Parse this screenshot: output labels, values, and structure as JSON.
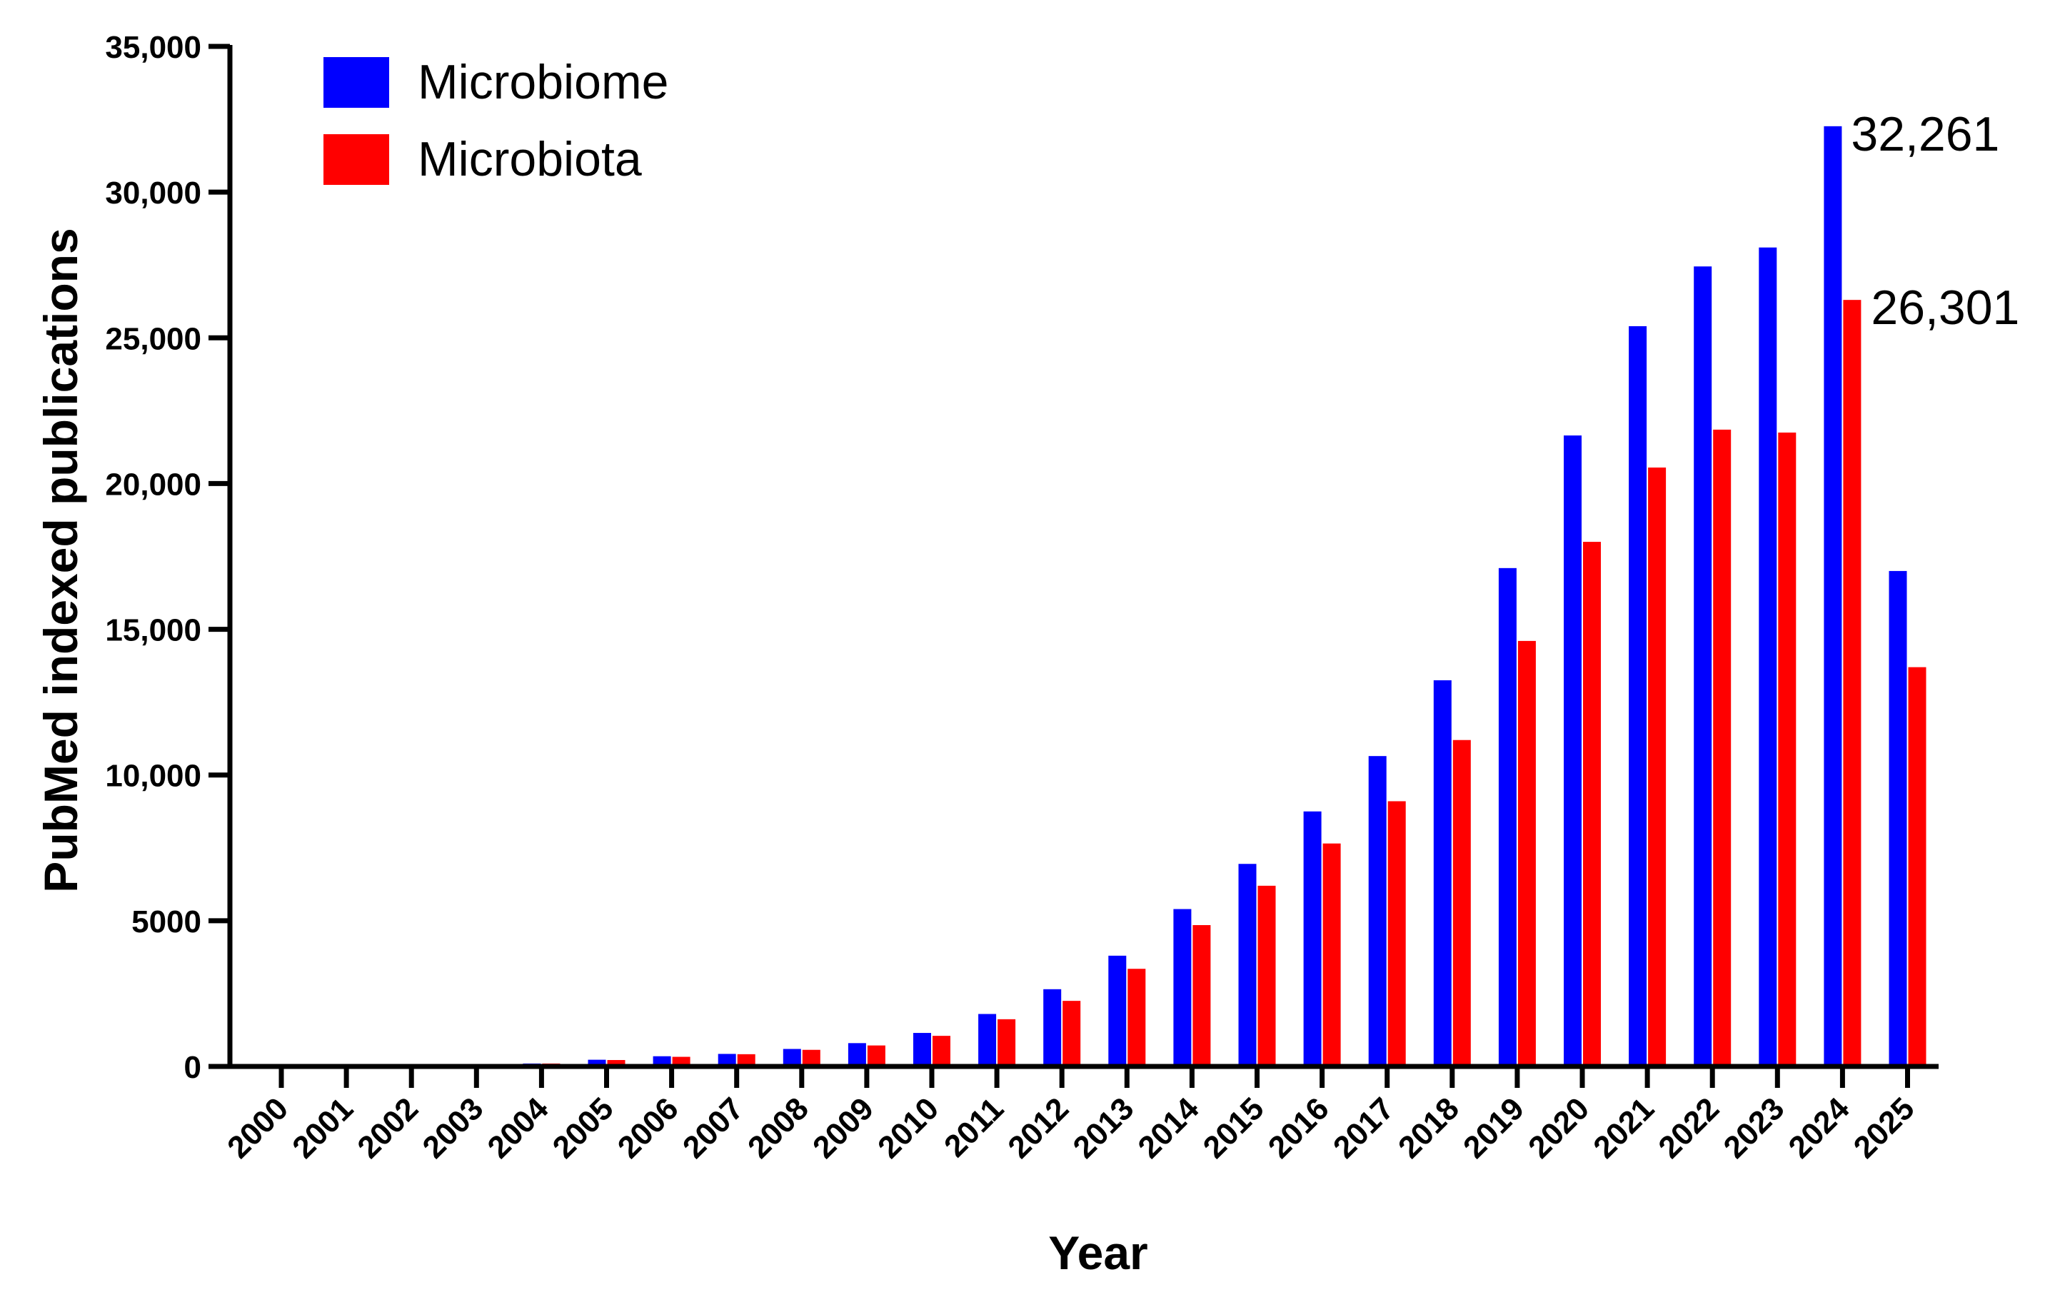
{
  "chart_data": {
    "type": "bar",
    "title": "",
    "xlabel": "Year",
    "ylabel": "PubMed  indexed publications",
    "ylim": [
      0,
      35000
    ],
    "yticks": [
      {
        "value": 0,
        "label": "0"
      },
      {
        "value": 5000,
        "label": "5000"
      },
      {
        "value": 10000,
        "label": "10,000"
      },
      {
        "value": 15000,
        "label": "15,000"
      },
      {
        "value": 20000,
        "label": "20,000"
      },
      {
        "value": 25000,
        "label": "25,000"
      },
      {
        "value": 30000,
        "label": "30,000"
      },
      {
        "value": 35000,
        "label": "35,000"
      }
    ],
    "categories": [
      "2000",
      "2001",
      "2002",
      "2003",
      "2004",
      "2005",
      "2006",
      "2007",
      "2008",
      "2009",
      "2010",
      "2011",
      "2012",
      "2013",
      "2014",
      "2015",
      "2016",
      "2017",
      "2018",
      "2019",
      "2020",
      "2021",
      "2022",
      "2023",
      "2024",
      "2025"
    ],
    "series": [
      {
        "name": "Microbiome",
        "color": "#0000ff",
        "values": [
          20,
          25,
          35,
          50,
          100,
          230,
          350,
          430,
          600,
          800,
          1150,
          1800,
          2650,
          3800,
          5400,
          6950,
          8750,
          10650,
          13250,
          17100,
          21650,
          25400,
          27450,
          28100,
          32261,
          17000
        ]
      },
      {
        "name": "Microbiota",
        "color": "#ff0000",
        "values": [
          20,
          25,
          35,
          50,
          100,
          220,
          330,
          420,
          570,
          720,
          1050,
          1620,
          2250,
          3350,
          4850,
          6200,
          7650,
          9100,
          11200,
          14600,
          18000,
          20550,
          21850,
          21750,
          26301,
          13700
        ]
      }
    ],
    "legend_position": "top-left",
    "annotations": [
      {
        "series": "Microbiome",
        "category": "2024",
        "text": "32,261"
      },
      {
        "series": "Microbiota",
        "category": "2024",
        "text": "26,301"
      }
    ]
  }
}
